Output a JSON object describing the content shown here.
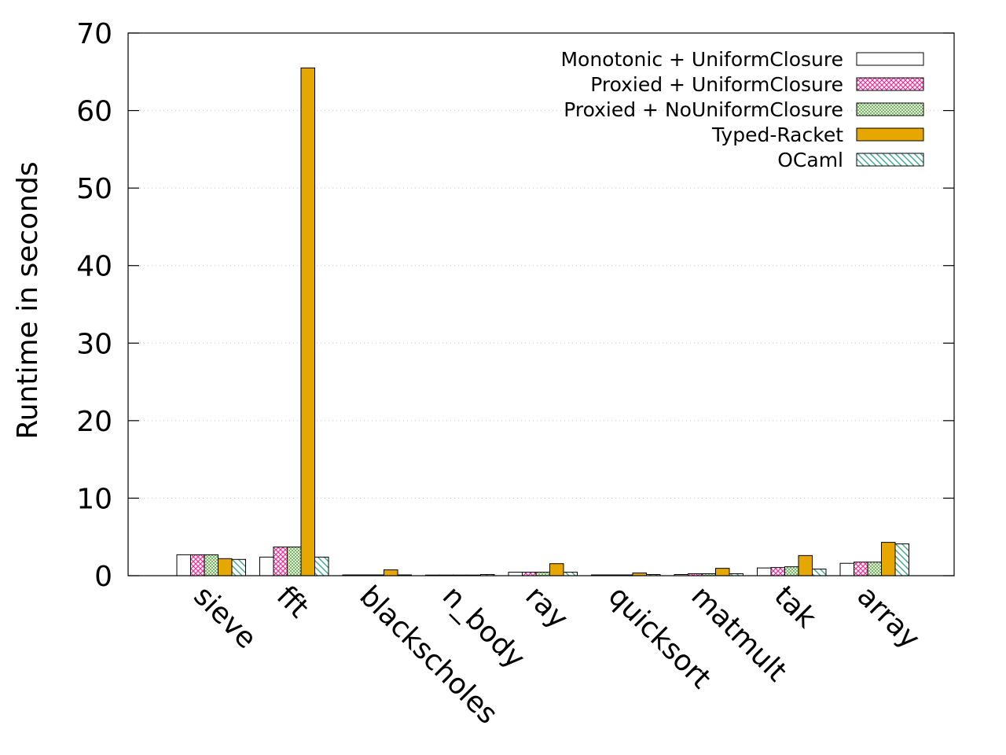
{
  "chart_data": {
    "type": "bar",
    "title": "",
    "xlabel": "",
    "ylabel": "Runtime in seconds",
    "ylim": [
      0,
      70
    ],
    "yticks": [
      0,
      10,
      20,
      30,
      40,
      50,
      60,
      70
    ],
    "grid": "horizontal dotted",
    "legend_position": "top-right",
    "categories": [
      "sieve",
      "fft",
      "blackscholes",
      "n_body",
      "ray",
      "quicksort",
      "matmult",
      "tak",
      "array"
    ],
    "series": [
      {
        "name": "Monotonic + UniformClosure",
        "color": "#ffffff",
        "pattern": "solid-empty",
        "values": [
          2.7,
          2.4,
          0.1,
          0.02,
          0.45,
          0.1,
          0.15,
          1.0,
          1.6
        ]
      },
      {
        "name": "Proxied + UniformClosure",
        "color": "#e8359e",
        "pattern": "crosshatch",
        "values": [
          2.7,
          3.7,
          0.1,
          0.02,
          0.45,
          0.1,
          0.25,
          1.05,
          1.75
        ]
      },
      {
        "name": "Proxied + NoUniformClosure",
        "color": "#6aa84f",
        "pattern": "fine-crosshatch",
        "values": [
          2.7,
          3.7,
          0.1,
          0.02,
          0.45,
          0.1,
          0.25,
          1.15,
          1.75
        ]
      },
      {
        "name": "Typed-Racket",
        "color": "#e6a800",
        "pattern": "solid",
        "values": [
          2.2,
          65.5,
          0.75,
          0.02,
          1.55,
          0.35,
          0.95,
          2.6,
          4.3
        ]
      },
      {
        "name": "OCaml",
        "color": "#3aa88a",
        "pattern": "diagonal",
        "values": [
          2.1,
          2.4,
          0.1,
          0.15,
          0.45,
          0.15,
          0.25,
          0.85,
          4.1
        ]
      }
    ]
  }
}
